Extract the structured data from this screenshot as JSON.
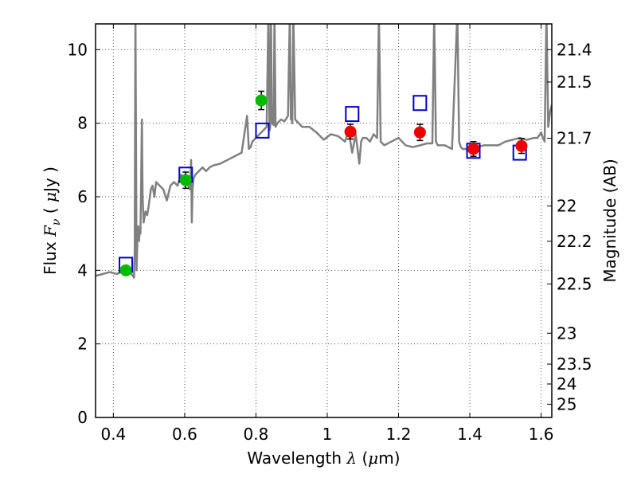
{
  "chart_data": {
    "type": "scatter",
    "title": "",
    "xlabel": {
      "prefix": "Wavelength  ",
      "symbol": "λ",
      "units_open": " (",
      "mu": "μ",
      "units_close": "m)"
    },
    "ylabel": {
      "prefix": "Flux  ",
      "symbol": "F",
      "subscript": "ν",
      "units_open": "  ( ",
      "mu": "μ",
      "units_close": "Jy )"
    },
    "y2label": "Magnitude (AB)",
    "xlim": [
      0.35,
      1.63
    ],
    "ylim": [
      0,
      10.7
    ],
    "grid": true,
    "legend": "none",
    "x_ticks": [
      {
        "value": 0.4,
        "label": "0.4"
      },
      {
        "value": 0.6,
        "label": "0.6"
      },
      {
        "value": 0.8,
        "label": "0.8"
      },
      {
        "value": 1.0,
        "label": "1"
      },
      {
        "value": 1.2,
        "label": "1.2"
      },
      {
        "value": 1.4,
        "label": "1.4"
      },
      {
        "value": 1.6,
        "label": "1.6"
      }
    ],
    "y_ticks": [
      {
        "value": 0,
        "label": "0"
      },
      {
        "value": 2,
        "label": "2"
      },
      {
        "value": 4,
        "label": "4"
      },
      {
        "value": 6,
        "label": "6"
      },
      {
        "value": 8,
        "label": "8"
      },
      {
        "value": 10,
        "label": "10"
      }
    ],
    "magnitude_ticks": [
      {
        "label": "21.4",
        "flux": 10.0
      },
      {
        "label": "21.5",
        "flux": 9.12
      },
      {
        "label": "21.7",
        "flux": 7.59
      },
      {
        "label": "22",
        "flux": 5.75
      },
      {
        "label": "22.2",
        "flux": 4.79
      },
      {
        "label": "22.5",
        "flux": 3.63
      },
      {
        "label": "23",
        "flux": 2.29
      },
      {
        "label": "23.5",
        "flux": 1.45
      },
      {
        "label": "24",
        "flux": 0.91
      },
      {
        "label": "25",
        "flux": 0.36
      }
    ],
    "colors": {
      "spectrum": "#808080",
      "model_box": "#0000cc",
      "optical": "#00bb00",
      "nir": "#ee0000",
      "grid": "#555555"
    },
    "series": [
      {
        "kind": "line",
        "color": "#808080",
        "x": [
          0.35,
          0.37,
          0.39,
          0.41,
          0.43,
          0.45,
          0.455,
          0.458,
          0.46,
          0.462,
          0.465,
          0.468,
          0.47,
          0.472,
          0.474,
          0.476,
          0.478,
          0.48,
          0.482,
          0.485,
          0.49,
          0.495,
          0.5,
          0.505,
          0.51,
          0.515,
          0.52,
          0.525,
          0.53,
          0.54,
          0.55,
          0.56,
          0.57,
          0.58,
          0.59,
          0.6,
          0.61,
          0.615,
          0.618,
          0.62,
          0.622,
          0.625,
          0.63,
          0.64,
          0.65,
          0.66,
          0.67,
          0.68,
          0.7,
          0.72,
          0.74,
          0.76,
          0.775,
          0.78,
          0.785,
          0.79,
          0.8,
          0.81,
          0.82,
          0.83,
          0.835,
          0.838,
          0.84,
          0.842,
          0.845,
          0.85,
          0.852,
          0.855,
          0.86,
          0.87,
          0.88,
          0.89,
          0.895,
          0.898,
          0.9,
          0.902,
          0.905,
          0.91,
          0.92,
          0.93,
          0.95,
          0.97,
          0.99,
          1.01,
          1.03,
          1.05,
          1.06,
          1.07,
          1.08,
          1.085,
          1.09,
          1.095,
          1.1,
          1.11,
          1.12,
          1.13,
          1.14,
          1.145,
          1.15,
          1.16,
          1.18,
          1.2,
          1.22,
          1.24,
          1.26,
          1.28,
          1.295,
          1.3,
          1.305,
          1.31,
          1.33,
          1.35,
          1.365,
          1.37,
          1.375,
          1.38,
          1.4,
          1.42,
          1.44,
          1.46,
          1.48,
          1.5,
          1.52,
          1.54,
          1.56,
          1.58,
          1.59,
          1.6,
          1.605,
          1.61,
          1.615,
          1.62,
          1.625,
          1.63
        ],
        "y": [
          3.85,
          3.9,
          3.95,
          3.9,
          4.0,
          3.9,
          3.85,
          3.8,
          4.5,
          11.0,
          4.0,
          5.0,
          5.2,
          4.8,
          5.1,
          5.0,
          6.5,
          8.1,
          6.0,
          5.3,
          5.6,
          5.5,
          5.8,
          6.2,
          6.3,
          6.0,
          6.4,
          6.35,
          6.3,
          6.2,
          5.9,
          6.3,
          6.4,
          6.3,
          6.6,
          6.5,
          6.3,
          6.2,
          7.0,
          5.3,
          6.2,
          6.5,
          6.6,
          6.7,
          6.8,
          6.7,
          6.8,
          6.85,
          6.9,
          7.0,
          7.1,
          7.2,
          8.2,
          7.3,
          7.35,
          7.5,
          7.6,
          7.7,
          7.8,
          7.9,
          11.0,
          7.8,
          7.9,
          11.0,
          8.0,
          7.95,
          11.0,
          7.9,
          8.0,
          8.1,
          8.05,
          8.2,
          11.0,
          8.1,
          8.2,
          8.0,
          11.0,
          8.1,
          8.0,
          7.9,
          7.9,
          7.75,
          7.55,
          7.7,
          7.65,
          7.5,
          7.8,
          7.2,
          7.7,
          7.3,
          6.9,
          7.5,
          7.6,
          7.6,
          7.5,
          7.7,
          7.6,
          11.0,
          7.5,
          7.4,
          7.5,
          7.6,
          7.4,
          7.35,
          7.4,
          7.45,
          7.45,
          11.0,
          7.5,
          7.4,
          7.4,
          7.3,
          11.0,
          7.5,
          7.35,
          7.3,
          7.3,
          7.35,
          7.4,
          7.4,
          7.4,
          7.5,
          7.55,
          7.6,
          7.55,
          7.6,
          7.6,
          7.75,
          7.6,
          7.5,
          11.0,
          7.9,
          8.3,
          8.5
        ]
      },
      {
        "kind": "box",
        "color": "#0000cc",
        "x": [
          0.435,
          0.603,
          0.818,
          1.07,
          1.26,
          1.41,
          1.54
        ],
        "y": [
          4.15,
          6.6,
          7.8,
          8.25,
          8.55,
          7.25,
          7.2
        ]
      },
      {
        "kind": "point",
        "color": "#00bb00",
        "x": [
          0.435,
          0.603,
          0.815
        ],
        "y": [
          4.0,
          6.45,
          8.62
        ],
        "err": [
          0.1,
          0.22,
          0.25
        ]
      },
      {
        "kind": "point",
        "color": "#ee0000",
        "x": [
          1.065,
          1.26,
          1.41,
          1.545
        ],
        "y": [
          7.77,
          7.75,
          7.3,
          7.38
        ],
        "err": [
          0.2,
          0.22,
          0.2,
          0.2
        ]
      }
    ]
  }
}
